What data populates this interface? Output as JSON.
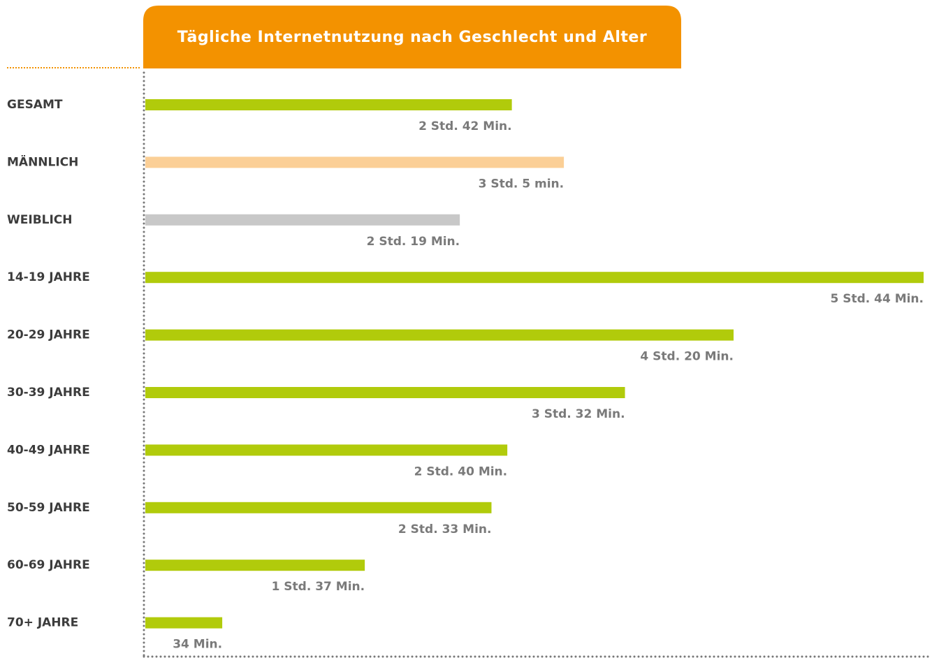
{
  "chart_data": {
    "type": "bar",
    "orientation": "horizontal",
    "title": "Tägliche Internetnutzung nach Geschlecht und Alter",
    "categories": [
      "GESAMT",
      "MÄNNLICH",
      "WEIBLICH",
      "14-19 JAHRE",
      "20-29 JAHRE",
      "30-39 JAHRE",
      "40-49 JAHRE",
      "50-59 JAHRE",
      "60-69 JAHRE",
      "70+ JAHRE"
    ],
    "values": [
      162,
      185,
      139,
      344,
      260,
      212,
      160,
      153,
      97,
      34
    ],
    "value_labels": [
      "2 Std. 42 Min.",
      "3 Std. 5 min.",
      "2 Std. 19 Min.",
      "5 Std. 44 Min.",
      "4 Std. 20 Min.",
      "3 Std. 32 Min.",
      "2 Std. 40 Min.",
      "2 Std. 33 Min.",
      "1 Std. 37 Min.",
      "34 Min."
    ],
    "colors": [
      "#b1cb0b",
      "#fbcf96",
      "#c8c8c8",
      "#b1cb0b",
      "#b1cb0b",
      "#b1cb0b",
      "#b1cb0b",
      "#b1cb0b",
      "#b1cb0b",
      "#b1cb0b"
    ]
  }
}
